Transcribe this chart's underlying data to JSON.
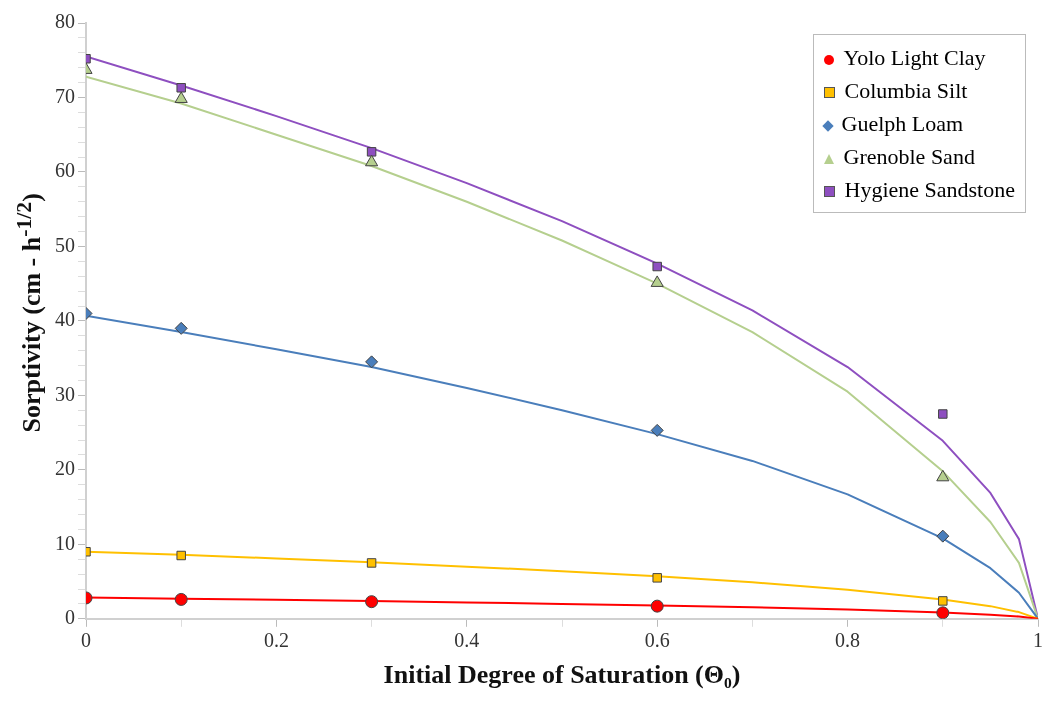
{
  "chart_data": {
    "type": "scatter",
    "xlabel": "Initial Degree of Saturation (Θ₀)",
    "ylabel": "Sorptivity (cm - h$^{-1/2}$)",
    "x": [
      0,
      0.1,
      0.3,
      0.6,
      0.9
    ],
    "xlim": [
      0,
      1
    ],
    "xticks": [
      0,
      {
        "value": 0.1,
        "label": null
      },
      0.2,
      {
        "value": 0.3,
        "label": null
      },
      0.4,
      {
        "value": 0.5,
        "label": null
      },
      0.6,
      {
        "value": 0.7,
        "label": null
      },
      0.8,
      {
        "value": 0.9,
        "label": null
      },
      1
    ],
    "ylim": [
      0,
      80
    ],
    "yticks": [
      0,
      {
        "value": 2,
        "label": null
      },
      {
        "value": 4,
        "label": null
      },
      {
        "value": 6,
        "label": null
      },
      {
        "value": 8,
        "label": null
      },
      10,
      {
        "value": 12,
        "label": null
      },
      {
        "value": 14,
        "label": null
      },
      {
        "value": 16,
        "label": null
      },
      {
        "value": 18,
        "label": null
      },
      20,
      {
        "value": 22,
        "label": null
      },
      {
        "value": 24,
        "label": null
      },
      {
        "value": 26,
        "label": null
      },
      {
        "value": 28,
        "label": null
      },
      30,
      {
        "value": 32,
        "label": null
      },
      {
        "value": 34,
        "label": null
      },
      {
        "value": 36,
        "label": null
      },
      {
        "value": 38,
        "label": null
      },
      40,
      {
        "value": 42,
        "label": null
      },
      {
        "value": 44,
        "label": null
      },
      {
        "value": 46,
        "label": null
      },
      {
        "value": 48,
        "label": null
      },
      50,
      {
        "value": 52,
        "label": null
      },
      {
        "value": 54,
        "label": null
      },
      {
        "value": 56,
        "label": null
      },
      {
        "value": 58,
        "label": null
      },
      60,
      {
        "value": 62,
        "label": null
      },
      {
        "value": 64,
        "label": null
      },
      {
        "value": 66,
        "label": null
      },
      {
        "value": 68,
        "label": null
      },
      70,
      {
        "value": 72,
        "label": null
      },
      {
        "value": 74,
        "label": null
      },
      {
        "value": 76,
        "label": null
      },
      {
        "value": 78,
        "label": null
      },
      80
    ],
    "grid": false,
    "legend": "top right",
    "series": [
      {
        "name": "Yolo Light Clay",
        "color": "#ff0000",
        "marker": "circle",
        "values": [
          2.8,
          2.6,
          2.3,
          1.7,
          0.8
        ]
      },
      {
        "name": "Columbia Silt",
        "color": "#ffc000",
        "marker": "square",
        "values": [
          9.0,
          8.5,
          7.5,
          5.5,
          2.4
        ]
      },
      {
        "name": "Guelph Loam",
        "color": "#4a7ebb",
        "marker": "diamond",
        "values": [
          41,
          39,
          34.5,
          25.3,
          11.1
        ]
      },
      {
        "name": "Grenoble Sand",
        "color": "#b5cf8e",
        "marker": "triangle",
        "values": [
          73.7,
          69.8,
          61.3,
          45.1,
          19
        ]
      },
      {
        "name": "Hygiene Sandstone",
        "color": "#8e4fc0",
        "marker": "square",
        "values": [
          75.2,
          71.3,
          62.7,
          47.3,
          27.5
        ]
      },
      {
        "type": "line",
        "color": "#ff0000",
        "marker": "none",
        "x": [
          0,
          0.1,
          0.2,
          0.3,
          0.4,
          0.5,
          0.6,
          0.7,
          0.8,
          0.9,
          0.95,
          0.98,
          1
        ],
        "values": [
          2.85,
          2.7,
          2.55,
          2.4,
          2.2,
          2.0,
          1.8,
          1.55,
          1.25,
          0.85,
          0.55,
          0.3,
          0
        ]
      },
      {
        "type": "line",
        "color": "#ffc000",
        "marker": "none",
        "x": [
          0,
          0.1,
          0.2,
          0.3,
          0.4,
          0.5,
          0.6,
          0.7,
          0.8,
          0.9,
          0.95,
          0.98,
          1
        ],
        "values": [
          9.0,
          8.6,
          8.1,
          7.6,
          7.0,
          6.4,
          5.7,
          4.9,
          3.9,
          2.6,
          1.7,
          0.9,
          0
        ]
      },
      {
        "type": "line",
        "color": "#4a7ebb",
        "marker": "none",
        "x": [
          0,
          0.1,
          0.2,
          0.3,
          0.4,
          0.5,
          0.6,
          0.7,
          0.8,
          0.9,
          0.95,
          0.98,
          1
        ],
        "values": [
          40.7,
          38.5,
          36.2,
          33.8,
          31,
          28,
          24.8,
          21.2,
          16.7,
          10.8,
          6.8,
          3.5,
          0
        ]
      },
      {
        "type": "line",
        "color": "#b5cf8e",
        "marker": "none",
        "x": [
          0,
          0.1,
          0.2,
          0.3,
          0.4,
          0.5,
          0.6,
          0.7,
          0.8,
          0.9,
          0.95,
          0.98,
          1
        ],
        "values": [
          72.8,
          69.2,
          65,
          60.8,
          56,
          50.8,
          45,
          38.5,
          30.5,
          19.8,
          13,
          7.5,
          0
        ]
      },
      {
        "type": "line",
        "color": "#8e4fc0",
        "marker": "none",
        "x": [
          0,
          0.1,
          0.2,
          0.3,
          0.4,
          0.5,
          0.6,
          0.7,
          0.8,
          0.9,
          0.95,
          0.98,
          1
        ],
        "values": [
          75.5,
          71.6,
          67.5,
          63.2,
          58.5,
          53.4,
          47.7,
          41.4,
          33.8,
          23.9,
          16.9,
          10.7,
          0
        ]
      }
    ]
  }
}
